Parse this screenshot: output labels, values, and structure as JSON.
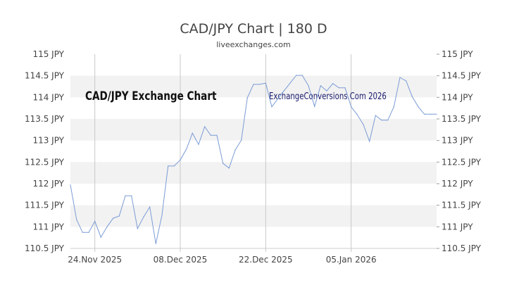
{
  "chart_data": {
    "type": "line",
    "title": "CAD/JPY Chart | 180 D",
    "subtitle": "liveexchanges.com",
    "watermark_left": "CAD/JPY Exchange Chart",
    "watermark_right": "ExchangeConversions.Com 2026",
    "ylim": [
      110.5,
      115
    ],
    "yticks": [
      "115 JPY",
      "114.5 JPY",
      "114 JPY",
      "113.5 JPY",
      "113 JPY",
      "112.5 JPY",
      "112 JPY",
      "111.5 JPY",
      "111 JPY",
      "110.5 JPY"
    ],
    "ytick_values": [
      115,
      114.5,
      114,
      113.5,
      113,
      112.5,
      112,
      111.5,
      111,
      110.5
    ],
    "xticks": [
      {
        "label": "24.Nov 2025",
        "date": "2025-11-24"
      },
      {
        "label": "08.Dec 2025",
        "date": "2025-12-08"
      },
      {
        "label": "22.Dec 2025",
        "date": "2025-12-22"
      },
      {
        "label": "05.Jan 2026",
        "date": "2026-01-05"
      }
    ],
    "x_start": "2025-11-20",
    "x_end": "2026-01-19",
    "grid": true,
    "line_color": "#7b9bd6",
    "values": [
      111.97,
      111.17,
      110.87,
      110.87,
      111.13,
      110.76,
      111.0,
      111.2,
      111.25,
      111.72,
      111.72,
      110.96,
      111.23,
      111.46,
      110.61,
      111.27,
      112.41,
      112.41,
      112.55,
      112.8,
      113.17,
      112.91,
      113.32,
      113.12,
      113.12,
      112.47,
      112.36,
      112.78,
      113.01,
      113.99,
      114.3,
      114.3,
      114.33,
      113.78,
      113.97,
      114.15,
      114.33,
      114.51,
      114.51,
      114.27,
      113.79,
      114.27,
      114.15,
      114.32,
      114.22,
      114.22,
      113.78,
      113.6,
      113.37,
      112.98,
      113.58,
      113.47,
      113.47,
      113.78,
      114.46,
      114.38,
      114.02,
      113.78,
      113.61,
      113.61,
      113.61
    ]
  }
}
